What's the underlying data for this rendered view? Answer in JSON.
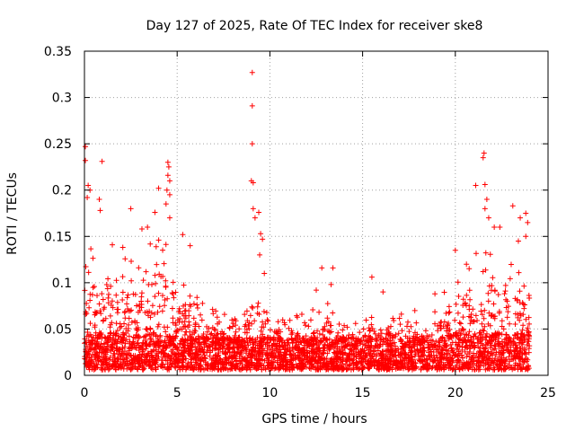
{
  "chart_data": {
    "type": "scatter",
    "title": "Day 127 of 2025, Rate Of TEC Index for receiver ske8",
    "xlabel": "GPS time / hours",
    "ylabel": "ROTI / TECUs",
    "xlim": [
      0,
      25
    ],
    "ylim": [
      0,
      0.35
    ],
    "x_ticks": [
      0,
      5,
      10,
      15,
      20,
      25
    ],
    "x_tick_labels": [
      "0",
      "5",
      "10",
      "15",
      "20",
      "25"
    ],
    "y_ticks": [
      0,
      0.05,
      0.1,
      0.15,
      0.2,
      0.25,
      0.3,
      0.35
    ],
    "y_tick_labels": [
      "0",
      "0.05",
      "0.1",
      "0.15",
      "0.2",
      "0.25",
      "0.3",
      "0.35"
    ],
    "grid": true,
    "marker": "+",
    "series_color": "#ff0000",
    "outliers": [
      {
        "x": 0.05,
        "y": 0.247
      },
      {
        "x": 0.05,
        "y": 0.232
      },
      {
        "x": 0.95,
        "y": 0.231
      },
      {
        "x": 0.2,
        "y": 0.205
      },
      {
        "x": 0.3,
        "y": 0.2
      },
      {
        "x": 0.15,
        "y": 0.192
      },
      {
        "x": 0.8,
        "y": 0.19
      },
      {
        "x": 0.85,
        "y": 0.178
      },
      {
        "x": 2.5,
        "y": 0.18
      },
      {
        "x": 3.1,
        "y": 0.158
      },
      {
        "x": 3.4,
        "y": 0.16
      },
      {
        "x": 3.8,
        "y": 0.176
      },
      {
        "x": 4.0,
        "y": 0.202
      },
      {
        "x": 4.5,
        "y": 0.23
      },
      {
        "x": 4.55,
        "y": 0.225
      },
      {
        "x": 4.5,
        "y": 0.216
      },
      {
        "x": 4.6,
        "y": 0.21
      },
      {
        "x": 4.45,
        "y": 0.2
      },
      {
        "x": 4.6,
        "y": 0.195
      },
      {
        "x": 4.4,
        "y": 0.185
      },
      {
        "x": 4.6,
        "y": 0.17
      },
      {
        "x": 5.3,
        "y": 0.152
      },
      {
        "x": 5.7,
        "y": 0.14
      },
      {
        "x": 9.05,
        "y": 0.327
      },
      {
        "x": 9.05,
        "y": 0.291
      },
      {
        "x": 9.05,
        "y": 0.25
      },
      {
        "x": 9.0,
        "y": 0.21
      },
      {
        "x": 9.1,
        "y": 0.208
      },
      {
        "x": 9.1,
        "y": 0.18
      },
      {
        "x": 9.2,
        "y": 0.17
      },
      {
        "x": 9.4,
        "y": 0.176
      },
      {
        "x": 9.5,
        "y": 0.153
      },
      {
        "x": 9.6,
        "y": 0.147
      },
      {
        "x": 9.45,
        "y": 0.13
      },
      {
        "x": 9.7,
        "y": 0.11
      },
      {
        "x": 12.5,
        "y": 0.092
      },
      {
        "x": 12.8,
        "y": 0.116
      },
      {
        "x": 13.4,
        "y": 0.116
      },
      {
        "x": 13.3,
        "y": 0.098
      },
      {
        "x": 15.5,
        "y": 0.106
      },
      {
        "x": 16.1,
        "y": 0.09
      },
      {
        "x": 18.9,
        "y": 0.088
      },
      {
        "x": 20.0,
        "y": 0.135
      },
      {
        "x": 20.6,
        "y": 0.12
      },
      {
        "x": 21.1,
        "y": 0.205
      },
      {
        "x": 21.55,
        "y": 0.24
      },
      {
        "x": 21.5,
        "y": 0.235
      },
      {
        "x": 21.6,
        "y": 0.206
      },
      {
        "x": 21.7,
        "y": 0.19
      },
      {
        "x": 21.6,
        "y": 0.18
      },
      {
        "x": 21.8,
        "y": 0.17
      },
      {
        "x": 22.1,
        "y": 0.16
      },
      {
        "x": 22.4,
        "y": 0.16
      },
      {
        "x": 23.1,
        "y": 0.183
      },
      {
        "x": 23.5,
        "y": 0.17
      },
      {
        "x": 23.8,
        "y": 0.175
      },
      {
        "x": 23.9,
        "y": 0.165
      },
      {
        "x": 23.4,
        "y": 0.145
      },
      {
        "x": 23.8,
        "y": 0.15
      }
    ],
    "density_profile": [
      {
        "x": 0,
        "base": 0.02,
        "upper": 0.14
      },
      {
        "x": 1,
        "base": 0.02,
        "upper": 0.13
      },
      {
        "x": 2,
        "base": 0.02,
        "upper": 0.14
      },
      {
        "x": 3,
        "base": 0.02,
        "upper": 0.13
      },
      {
        "x": 4,
        "base": 0.02,
        "upper": 0.15
      },
      {
        "x": 5,
        "base": 0.015,
        "upper": 0.12
      },
      {
        "x": 6,
        "base": 0.015,
        "upper": 0.08
      },
      {
        "x": 7,
        "base": 0.015,
        "upper": 0.065
      },
      {
        "x": 8,
        "base": 0.015,
        "upper": 0.06
      },
      {
        "x": 9,
        "base": 0.015,
        "upper": 0.08
      },
      {
        "x": 10,
        "base": 0.015,
        "upper": 0.065
      },
      {
        "x": 11,
        "base": 0.015,
        "upper": 0.06
      },
      {
        "x": 12,
        "base": 0.015,
        "upper": 0.07
      },
      {
        "x": 13,
        "base": 0.015,
        "upper": 0.075
      },
      {
        "x": 14,
        "base": 0.015,
        "upper": 0.055
      },
      {
        "x": 15,
        "base": 0.015,
        "upper": 0.055
      },
      {
        "x": 16,
        "base": 0.015,
        "upper": 0.06
      },
      {
        "x": 17,
        "base": 0.015,
        "upper": 0.06
      },
      {
        "x": 18,
        "base": 0.015,
        "upper": 0.065
      },
      {
        "x": 19,
        "base": 0.015,
        "upper": 0.075
      },
      {
        "x": 20,
        "base": 0.02,
        "upper": 0.1
      },
      {
        "x": 21,
        "base": 0.02,
        "upper": 0.13
      },
      {
        "x": 22,
        "base": 0.02,
        "upper": 0.13
      },
      {
        "x": 23,
        "base": 0.02,
        "upper": 0.12
      },
      {
        "x": 24,
        "base": 0.02,
        "upper": 0.1
      }
    ],
    "time_span": [
      0,
      24
    ]
  }
}
